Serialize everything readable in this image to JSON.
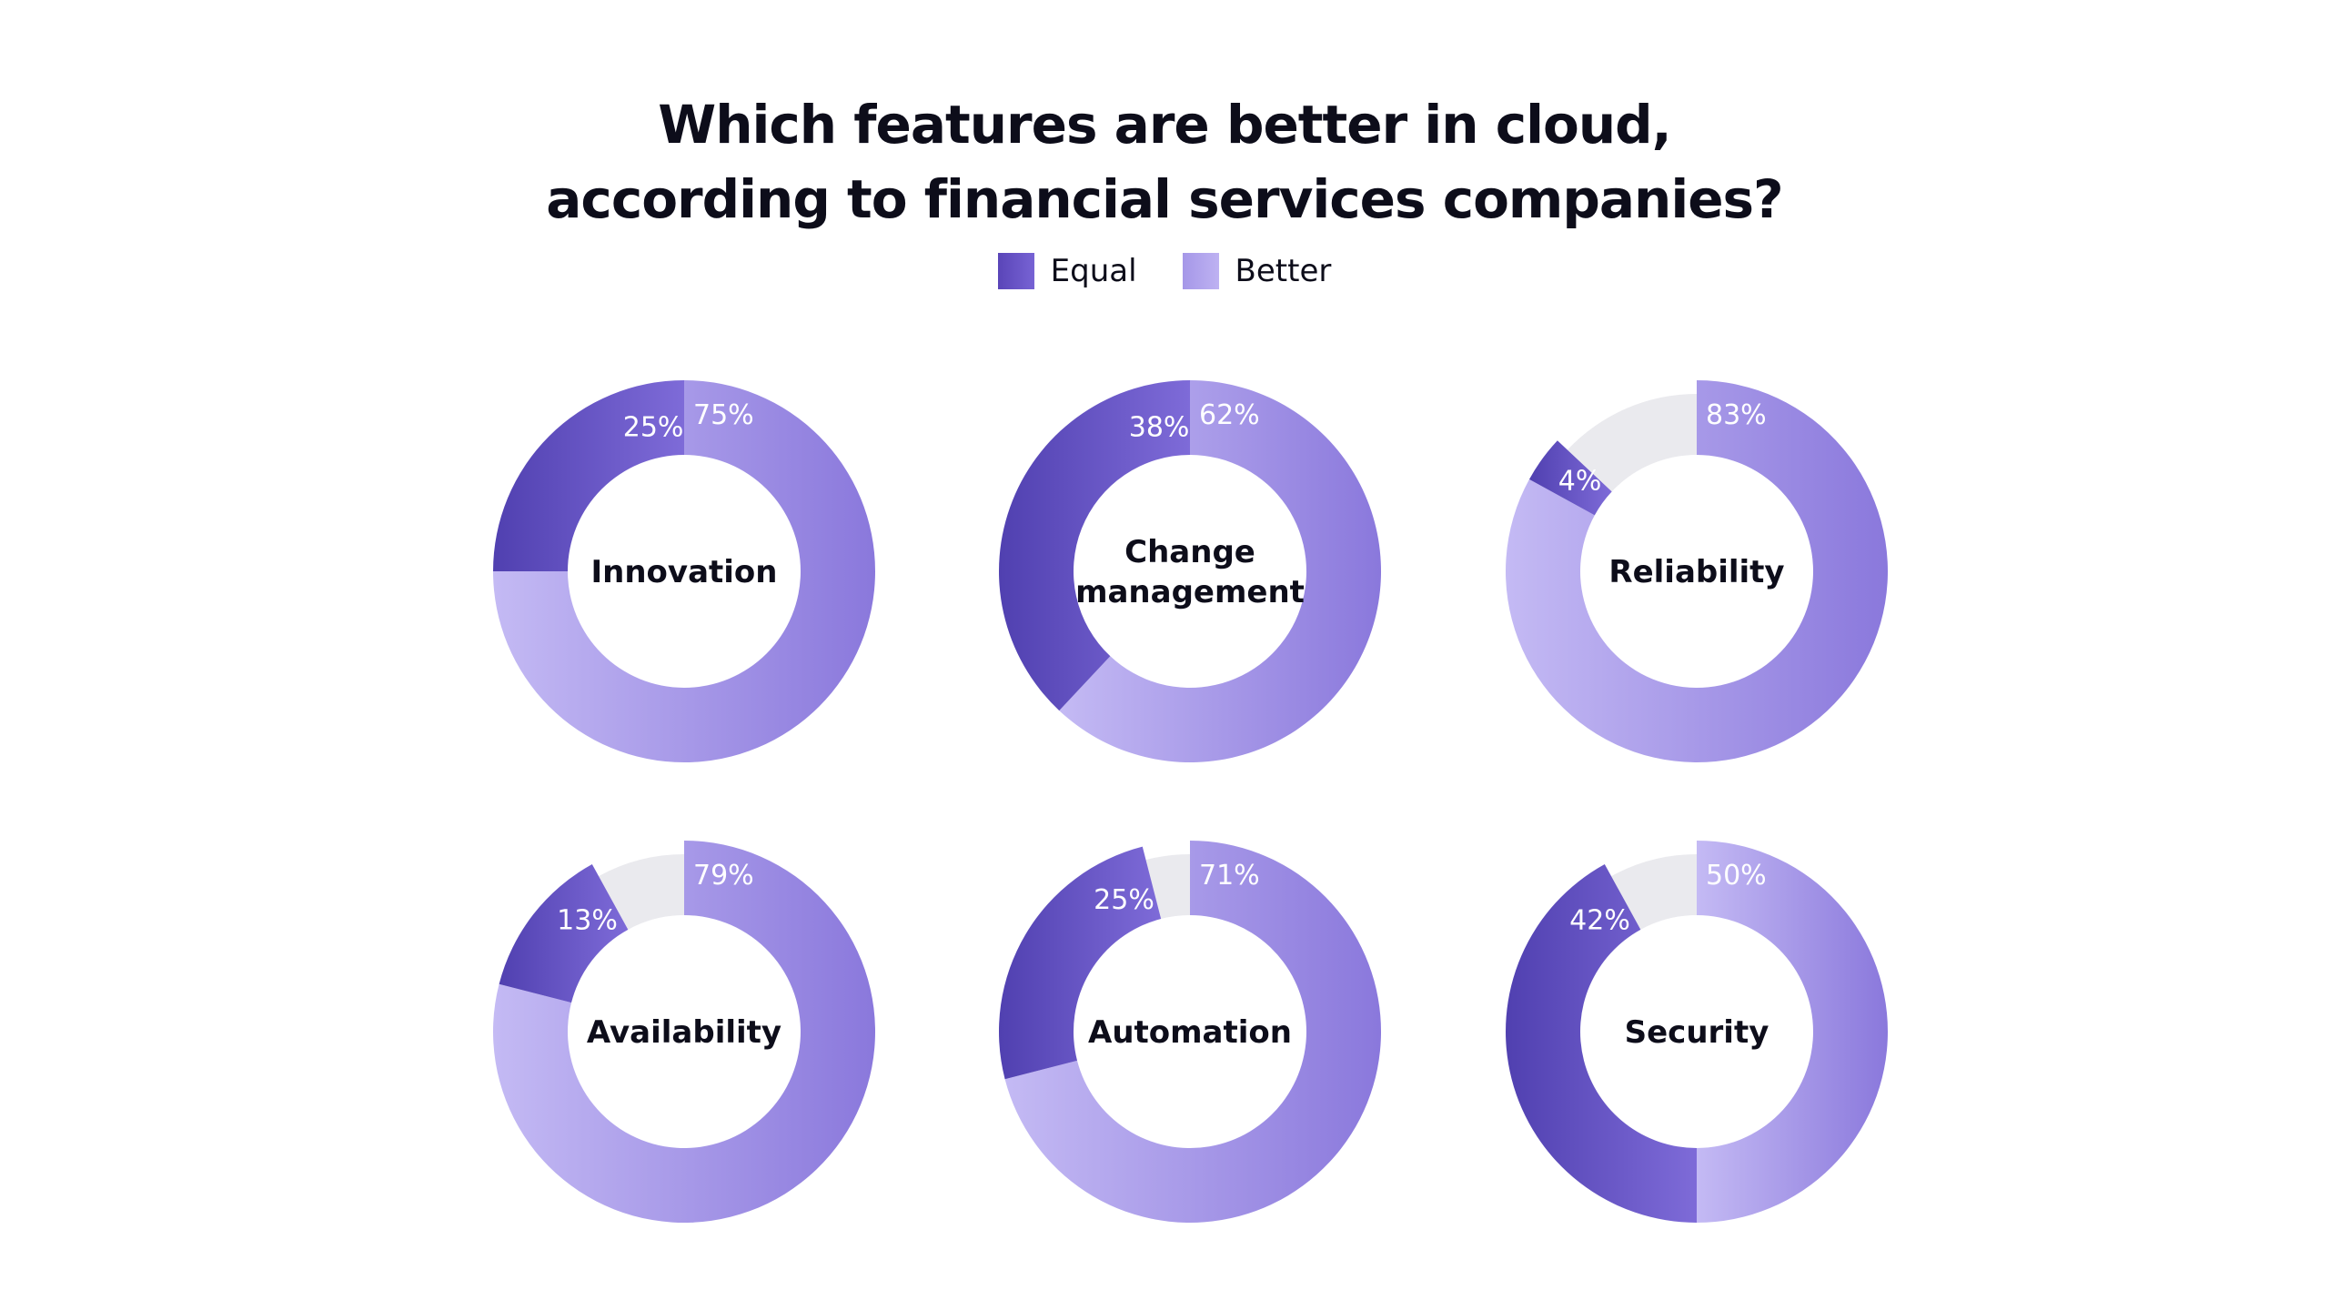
{
  "title_lines": [
    "Which features are better in cloud,",
    "according to financial services companies?"
  ],
  "legend": [
    {
      "label": "Equal",
      "color": "#5a45b8"
    },
    {
      "label": "Better",
      "color": "#a99bea"
    }
  ],
  "colors": {
    "equal_start": "#5040b0",
    "equal_end": "#7e6bd8",
    "better_start": "#c4baf4",
    "better_end": "#8a78dc",
    "remainder": "#eaeaee"
  },
  "chart_data": [
    {
      "type": "pie",
      "title": "Innovation",
      "title_lines": [
        "Innovation"
      ],
      "series": [
        {
          "name": "Better",
          "value": 75,
          "label": "75%"
        },
        {
          "name": "Equal",
          "value": 25,
          "label": "25%"
        }
      ]
    },
    {
      "type": "pie",
      "title": "Change management",
      "title_lines": [
        "Change",
        "management"
      ],
      "series": [
        {
          "name": "Better",
          "value": 62,
          "label": "62%"
        },
        {
          "name": "Equal",
          "value": 38,
          "label": "38%"
        }
      ]
    },
    {
      "type": "pie",
      "title": "Reliability",
      "title_lines": [
        "Reliability"
      ],
      "series": [
        {
          "name": "Better",
          "value": 83,
          "label": "83%"
        },
        {
          "name": "Equal",
          "value": 4,
          "label": "4%"
        }
      ]
    },
    {
      "type": "pie",
      "title": "Availability",
      "title_lines": [
        "Availability"
      ],
      "series": [
        {
          "name": "Better",
          "value": 79,
          "label": "79%"
        },
        {
          "name": "Equal",
          "value": 13,
          "label": "13%"
        }
      ]
    },
    {
      "type": "pie",
      "title": "Automation",
      "title_lines": [
        "Automation"
      ],
      "series": [
        {
          "name": "Better",
          "value": 71,
          "label": "71%"
        },
        {
          "name": "Equal",
          "value": 25,
          "label": "25%"
        }
      ]
    },
    {
      "type": "pie",
      "title": "Security",
      "title_lines": [
        "Security"
      ],
      "series": [
        {
          "name": "Better",
          "value": 50,
          "label": "50%"
        },
        {
          "name": "Equal",
          "value": 42,
          "label": "42%"
        }
      ]
    }
  ]
}
